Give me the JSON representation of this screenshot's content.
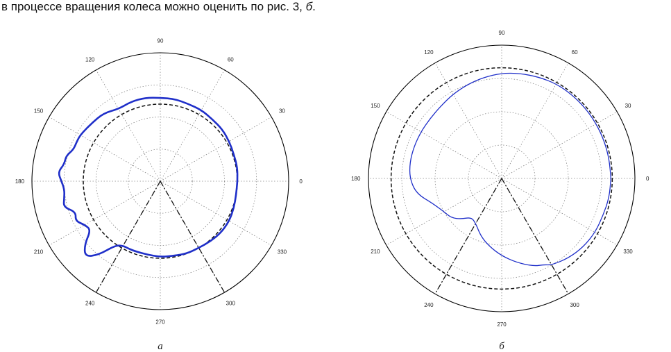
{
  "text": {
    "line_main": "в процессе вращения колеса можно оценить по рис. 3, ",
    "line_italic": "б",
    "line_end": "."
  },
  "colors": {
    "curve": "#1f2fc9",
    "reference_circle": "#111111",
    "grid": "#888888",
    "frame": "#000000"
  },
  "chart_data": [
    {
      "type": "polar",
      "label": "а",
      "angle_ticks": [
        "0",
        "30",
        "60",
        "90",
        "120",
        "150",
        "180",
        "210",
        "240",
        "270",
        "300",
        "330"
      ],
      "angle_values_deg": [
        0,
        30,
        60,
        90,
        120,
        150,
        180,
        210,
        240,
        270,
        300,
        330
      ],
      "radial_grid": [
        0.25,
        0.5,
        0.75
      ],
      "outer_radius": 1.0,
      "reference_circle_radius": 0.6,
      "sector_lines_deg": [
        240,
        300
      ],
      "series": [
        {
          "style": "solid-blue-thick",
          "theta_deg": [
            0,
            10,
            20,
            30,
            40,
            50,
            60,
            70,
            80,
            90,
            100,
            110,
            120,
            130,
            140,
            150,
            155,
            160,
            165,
            170,
            175,
            180,
            185,
            190,
            195,
            200,
            205,
            210,
            215,
            220,
            225,
            230,
            235,
            240,
            245,
            250,
            260,
            270,
            280,
            290,
            300,
            310,
            320,
            330,
            340,
            350,
            360
          ],
          "r": [
            0.6,
            0.61,
            0.61,
            0.62,
            0.63,
            0.63,
            0.64,
            0.64,
            0.65,
            0.65,
            0.66,
            0.66,
            0.65,
            0.69,
            0.7,
            0.72,
            0.72,
            0.72,
            0.76,
            0.76,
            0.8,
            0.77,
            0.75,
            0.76,
            0.78,
            0.7,
            0.73,
            0.68,
            0.66,
            0.77,
            0.83,
            0.75,
            0.61,
            0.58,
            0.58,
            0.58,
            0.58,
            0.59,
            0.59,
            0.6,
            0.6,
            0.61,
            0.62,
            0.62,
            0.61,
            0.6,
            0.6
          ]
        }
      ]
    },
    {
      "type": "polar",
      "label": "б",
      "angle_ticks": [
        "0",
        "30",
        "60",
        "90",
        "120",
        "150",
        "180",
        "210",
        "240",
        "270",
        "300",
        "330"
      ],
      "angle_values_deg": [
        0,
        30,
        60,
        90,
        120,
        150,
        180,
        210,
        240,
        270,
        300,
        330
      ],
      "radial_grid": [
        0.25,
        0.5,
        0.75
      ],
      "outer_radius": 1.0,
      "reference_circle_radius": 0.83,
      "sector_lines_deg": [
        240,
        300
      ],
      "series": [
        {
          "style": "solid-blue-thin",
          "theta_deg": [
            0,
            10,
            20,
            30,
            40,
            50,
            60,
            70,
            80,
            90,
            100,
            110,
            120,
            130,
            140,
            150,
            160,
            170,
            180,
            190,
            200,
            210,
            218,
            225,
            232,
            240,
            250,
            260,
            270,
            280,
            290,
            296,
            300,
            310,
            320,
            330,
            340,
            350,
            360
          ],
          "r": [
            0.82,
            0.82,
            0.82,
            0.82,
            0.82,
            0.82,
            0.82,
            0.81,
            0.8,
            0.79,
            0.77,
            0.75,
            0.73,
            0.71,
            0.7,
            0.7,
            0.7,
            0.7,
            0.69,
            0.65,
            0.55,
            0.5,
            0.48,
            0.43,
            0.37,
            0.39,
            0.46,
            0.52,
            0.58,
            0.64,
            0.7,
            0.72,
            0.75,
            0.78,
            0.8,
            0.81,
            0.81,
            0.82,
            0.82
          ]
        }
      ]
    }
  ]
}
